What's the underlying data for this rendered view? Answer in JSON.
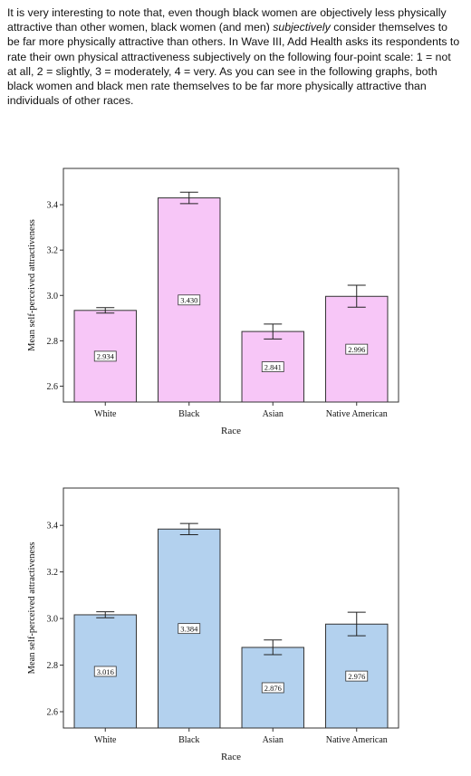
{
  "intro": {
    "p1": "It is very interesting to note that, even though black women are objectively less physically attractive than other women, black women (and men) ",
    "em": "subjectively",
    "p2": " consider themselves to be far more physically attractive than others.  In Wave III, Add Health asks its respondents to rate their own physical attractiveness subjectively on the following four-point scale:  1 = not at all, 2 = slightly, 3 = moderately, 4 = very.  As you can see in the following graphs, both black women and black men rate themselves to be far more physically attractive than individuals of other races."
  },
  "chart_data": [
    {
      "type": "bar",
      "categories": [
        "White",
        "Black",
        "Asian",
        "Native American"
      ],
      "values": [
        2.934,
        3.43,
        2.841,
        2.996
      ],
      "value_labels": [
        "2.934",
        "3.430",
        "2.841",
        "2.996"
      ],
      "error_low": [
        2.922,
        3.405,
        2.808,
        2.948
      ],
      "error_high": [
        2.946,
        3.455,
        2.874,
        3.045
      ],
      "xlabel": "Race",
      "ylabel": "Mean self-perceived attractiveness",
      "ylim": [
        2.53,
        3.56
      ],
      "yticks": [
        2.6,
        2.8,
        3.0,
        3.2,
        3.4
      ],
      "ytick_labels": [
        "2.6",
        "2.8",
        "3.0",
        "3.2",
        "3.4"
      ],
      "bar_color": "#f7c6f7",
      "grid": false
    },
    {
      "type": "bar",
      "categories": [
        "White",
        "Black",
        "Asian",
        "Native American"
      ],
      "values": [
        3.016,
        3.384,
        2.876,
        2.976
      ],
      "value_labels": [
        "3.016",
        "3.384",
        "2.876",
        "2.976"
      ],
      "error_low": [
        3.003,
        3.36,
        2.845,
        2.926
      ],
      "error_high": [
        3.029,
        3.408,
        2.908,
        3.027
      ],
      "xlabel": "Race",
      "ylabel": "Mean self-perceived attractiveness",
      "ylim": [
        2.53,
        3.56
      ],
      "yticks": [
        2.6,
        2.8,
        3.0,
        3.2,
        3.4
      ],
      "ytick_labels": [
        "2.6",
        "2.8",
        "3.0",
        "3.2",
        "3.4"
      ],
      "bar_color": "#b3d1ee",
      "grid": false
    }
  ]
}
